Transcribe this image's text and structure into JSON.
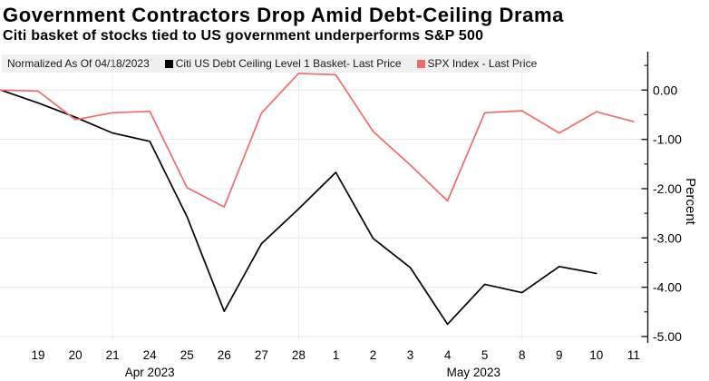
{
  "header": {
    "title": "Government Contractors Drop Amid Debt-Ceiling Drama",
    "subtitle": "Citi basket of stocks tied to US government underperforms S&P 500"
  },
  "legend": {
    "note": "Normalized As Of 04/18/2023",
    "series": [
      {
        "label": "Citi US Debt Ceiling Level 1 Basket- Last Price",
        "color": "#000000"
      },
      {
        "label": "SPX Index - Last Price",
        "color": "#ef6c6c"
      }
    ]
  },
  "axis": {
    "y_title": "Percent",
    "y_major": [
      {
        "value": 0,
        "label": "0.00"
      },
      {
        "value": -1,
        "label": "-1.00"
      },
      {
        "value": -2,
        "label": "-2.00"
      },
      {
        "value": -3,
        "label": "-3.00"
      },
      {
        "value": -4,
        "label": "-4.00"
      },
      {
        "value": -5,
        "label": "-5.00"
      }
    ],
    "y_minor_values": [
      0.5,
      -0.5,
      -1.5,
      -2.5,
      -3.5,
      -4.5
    ],
    "x_tick_labels": [
      "19",
      "20",
      "21",
      "24",
      "25",
      "26",
      "27",
      "28",
      "1",
      "2",
      "3",
      "4",
      "5",
      "8",
      "9",
      "10",
      "11"
    ],
    "x_month_labels": [
      {
        "label": "Apr 2023",
        "at_index": 4
      },
      {
        "label": "May 2023",
        "at_index": 12.7
      }
    ],
    "vgrid_indices": [
      3,
      8,
      14
    ]
  },
  "chart_data": {
    "type": "line",
    "title": "Government Contractors Drop Amid Debt-Ceiling Drama",
    "subtitle": "Citi basket of stocks tied to US government underperforms S&P 500",
    "xlabel": "",
    "ylabel": "Percent",
    "ylim": [
      -5.45,
      0.8
    ],
    "grid": "horizontal majors every 1.00, vertical weekly lines",
    "legend_position": "top",
    "normalized_as_of": "04/18/2023",
    "x": [
      "04/18",
      "04/19",
      "04/20",
      "04/21",
      "04/24",
      "04/25",
      "04/26",
      "04/27",
      "04/28",
      "05/01",
      "05/02",
      "05/03",
      "05/04",
      "05/05",
      "05/08",
      "05/09",
      "05/10",
      "05/11"
    ],
    "series": [
      {
        "name": "Citi US Debt Ceiling Level 1 Basket- Last Price",
        "color": "#000000",
        "values": [
          0,
          -0.26,
          -0.55,
          -0.87,
          -1.04,
          -2.57,
          -4.49,
          -3.12,
          -2.41,
          -1.67,
          -3.01,
          -3.6,
          -4.75,
          -3.94,
          -4.11,
          -3.58,
          -3.72,
          null
        ]
      },
      {
        "name": "SPX Index - Last Price",
        "color": "#ef6c6c",
        "values": [
          0,
          -0.02,
          -0.6,
          -0.46,
          -0.43,
          -1.98,
          -2.37,
          -0.47,
          0.34,
          0.31,
          -0.84,
          -1.52,
          -2.25,
          -0.46,
          -0.42,
          -0.87,
          -0.44,
          -0.64
        ]
      }
    ]
  }
}
